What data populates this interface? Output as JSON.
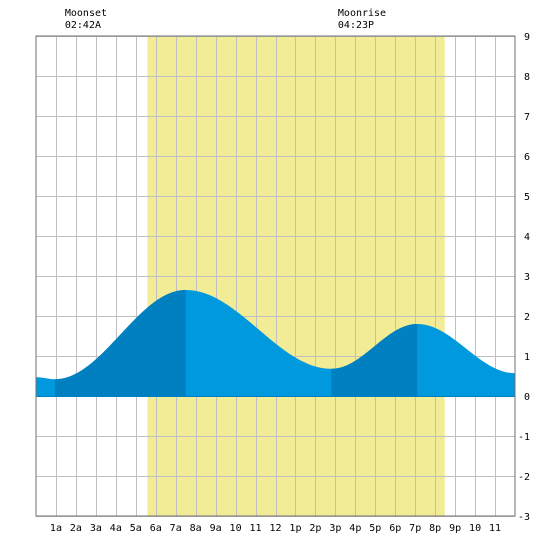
{
  "chart_data": {
    "type": "area",
    "title": "",
    "xlabel": "",
    "ylabel": "",
    "x_range_hours": [
      0,
      24
    ],
    "ylim": [
      -3,
      9
    ],
    "y_ticks": [
      -3,
      -2,
      -1,
      0,
      1,
      2,
      3,
      4,
      5,
      6,
      7,
      8,
      9
    ],
    "x_ticks": [
      {
        "hour": 1,
        "label": "1a"
      },
      {
        "hour": 2,
        "label": "2a"
      },
      {
        "hour": 3,
        "label": "3a"
      },
      {
        "hour": 4,
        "label": "4a"
      },
      {
        "hour": 5,
        "label": "5a"
      },
      {
        "hour": 6,
        "label": "6a"
      },
      {
        "hour": 7,
        "label": "7a"
      },
      {
        "hour": 8,
        "label": "8a"
      },
      {
        "hour": 9,
        "label": "9a"
      },
      {
        "hour": 10,
        "label": "10"
      },
      {
        "hour": 11,
        "label": "11"
      },
      {
        "hour": 12,
        "label": "12"
      },
      {
        "hour": 13,
        "label": "1p"
      },
      {
        "hour": 14,
        "label": "2p"
      },
      {
        "hour": 15,
        "label": "3p"
      },
      {
        "hour": 16,
        "label": "4p"
      },
      {
        "hour": 17,
        "label": "5p"
      },
      {
        "hour": 18,
        "label": "6p"
      },
      {
        "hour": 19,
        "label": "7p"
      },
      {
        "hour": 20,
        "label": "8p"
      },
      {
        "hour": 21,
        "label": "9p"
      },
      {
        "hour": 22,
        "label": "10"
      },
      {
        "hour": 23,
        "label": "11"
      }
    ],
    "grid": true,
    "daylight": {
      "start_hour": 5.58,
      "end_hour": 20.48
    },
    "tide_extremes": [
      {
        "hour": 0.0,
        "height": 0.47
      },
      {
        "hour": 0.95,
        "height": 0.42
      },
      {
        "hour": 7.5,
        "height": 2.65
      },
      {
        "hour": 14.8,
        "height": 0.68
      },
      {
        "hour": 19.1,
        "height": 1.8
      },
      {
        "hour": 24.0,
        "height": 0.57
      }
    ],
    "rising_periods": [
      {
        "start_hour": 0.95,
        "end_hour": 7.5
      },
      {
        "start_hour": 14.8,
        "end_hour": 19.1
      }
    ],
    "annotations": [
      {
        "label": "Moonset",
        "time": "02:42A",
        "hour": 2.7
      },
      {
        "label": "Moonrise",
        "time": "04:23P",
        "hour": 16.38
      }
    ],
    "colors": {
      "daylight": "#f2ec96",
      "tide_falling": "#0099dd",
      "tide_rising": "#0080c0",
      "grid": "#c0c0c0",
      "frame": "#707070"
    }
  }
}
